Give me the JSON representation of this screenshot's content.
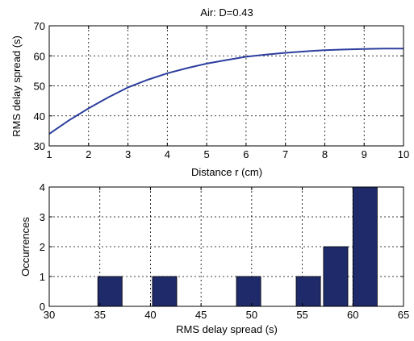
{
  "chart_data": [
    {
      "type": "line",
      "title": "Air: D=0.43",
      "xlabel": "Distance r (cm)",
      "ylabel": "RMS delay spread (s)",
      "xlim": [
        1,
        10
      ],
      "ylim": [
        30,
        70
      ],
      "xticks": [
        1,
        2,
        3,
        4,
        5,
        6,
        7,
        8,
        9,
        10
      ],
      "yticks": [
        30,
        40,
        50,
        60,
        70
      ],
      "grid": true,
      "series": [
        {
          "color": "#2c3e9e",
          "x": [
            1,
            1.5,
            2,
            2.5,
            3,
            3.5,
            4,
            4.5,
            5,
            5.5,
            6,
            6.5,
            7,
            7.5,
            8,
            8.5,
            9,
            9.5,
            10
          ],
          "y": [
            34,
            38.5,
            42.5,
            46.2,
            49.5,
            52,
            54.2,
            55.9,
            57.4,
            58.6,
            59.7,
            60.4,
            61,
            61.5,
            61.9,
            62.1,
            62.3,
            62.4,
            62.4
          ]
        }
      ]
    },
    {
      "type": "bar",
      "title": "",
      "xlabel": "RMS delay spread (s)",
      "ylabel": "Occurrences",
      "xlim": [
        30,
        65
      ],
      "ylim": [
        0,
        4
      ],
      "xticks": [
        30,
        35,
        40,
        45,
        50,
        55,
        60,
        65
      ],
      "yticks": [
        0,
        1,
        2,
        3,
        4
      ],
      "grid": true,
      "bar_color": "#1f2a6b",
      "bin_width": 2.4,
      "bins": [
        {
          "center": 36,
          "count": 1
        },
        {
          "center": 41.4,
          "count": 1
        },
        {
          "center": 49.7,
          "count": 1
        },
        {
          "center": 55.6,
          "count": 1
        },
        {
          "center": 58.3,
          "count": 2
        },
        {
          "center": 61.2,
          "count": 4
        }
      ]
    }
  ]
}
